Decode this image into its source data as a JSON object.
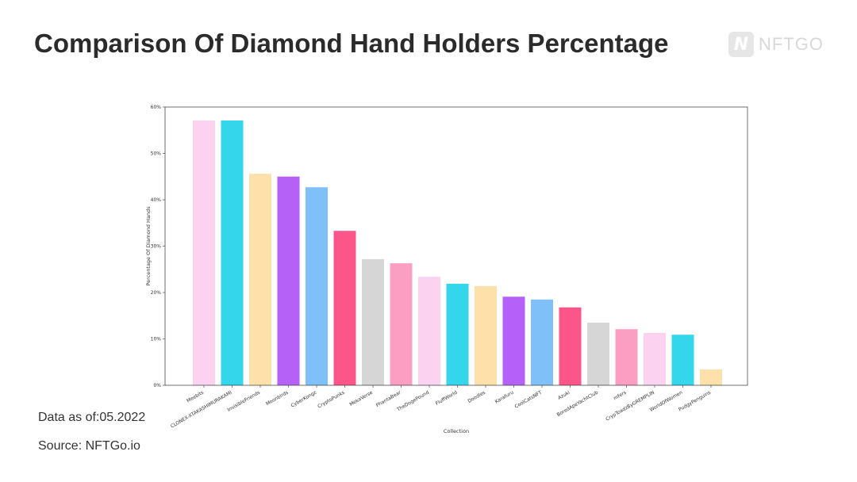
{
  "header": {
    "title": "Comparison Of Diamond Hand Holders Percentage",
    "logo_text": "NFTGO"
  },
  "footer": {
    "date_note": "Data as of:05.2022",
    "source": "Source: NFTGo.io"
  },
  "chart_data": {
    "type": "bar",
    "xlabel": "Collection",
    "ylabel": "Percentage Of Diamond Hands",
    "ylim": [
      0,
      60
    ],
    "yticks": [
      "0%",
      "10%",
      "20%",
      "30%",
      "40%",
      "50%",
      "60%"
    ],
    "grid": false,
    "categories": [
      "Meebits",
      "CLONEX-XTAKASHIMURAKAMI",
      "InvisibleFriends",
      "Moonbirds",
      "CyberKongz",
      "CryptoPunks",
      "MekaVerse",
      "PhantaBear",
      "TheDogePound",
      "FluffWorld",
      "Doodles",
      "Karafuru",
      "CoolCatsNFT",
      "Azuki",
      "BoredApeYachtClub",
      "mfers",
      "CrypToadzByGREMPLIN",
      "WorldOfWomen",
      "PudgyPenguins"
    ],
    "values": [
      57.1,
      57.1,
      45.6,
      45.0,
      42.7,
      33.3,
      27.2,
      26.3,
      23.4,
      21.9,
      21.4,
      19.1,
      18.5,
      16.8,
      13.5,
      12.1,
      11.3,
      10.9,
      3.4
    ],
    "colors": [
      "#fbd3f0",
      "#33d6eb",
      "#fde0aa",
      "#b561f7",
      "#7fc0f8",
      "#fb5589",
      "#d6d6d6",
      "#fb9fc2"
    ]
  }
}
